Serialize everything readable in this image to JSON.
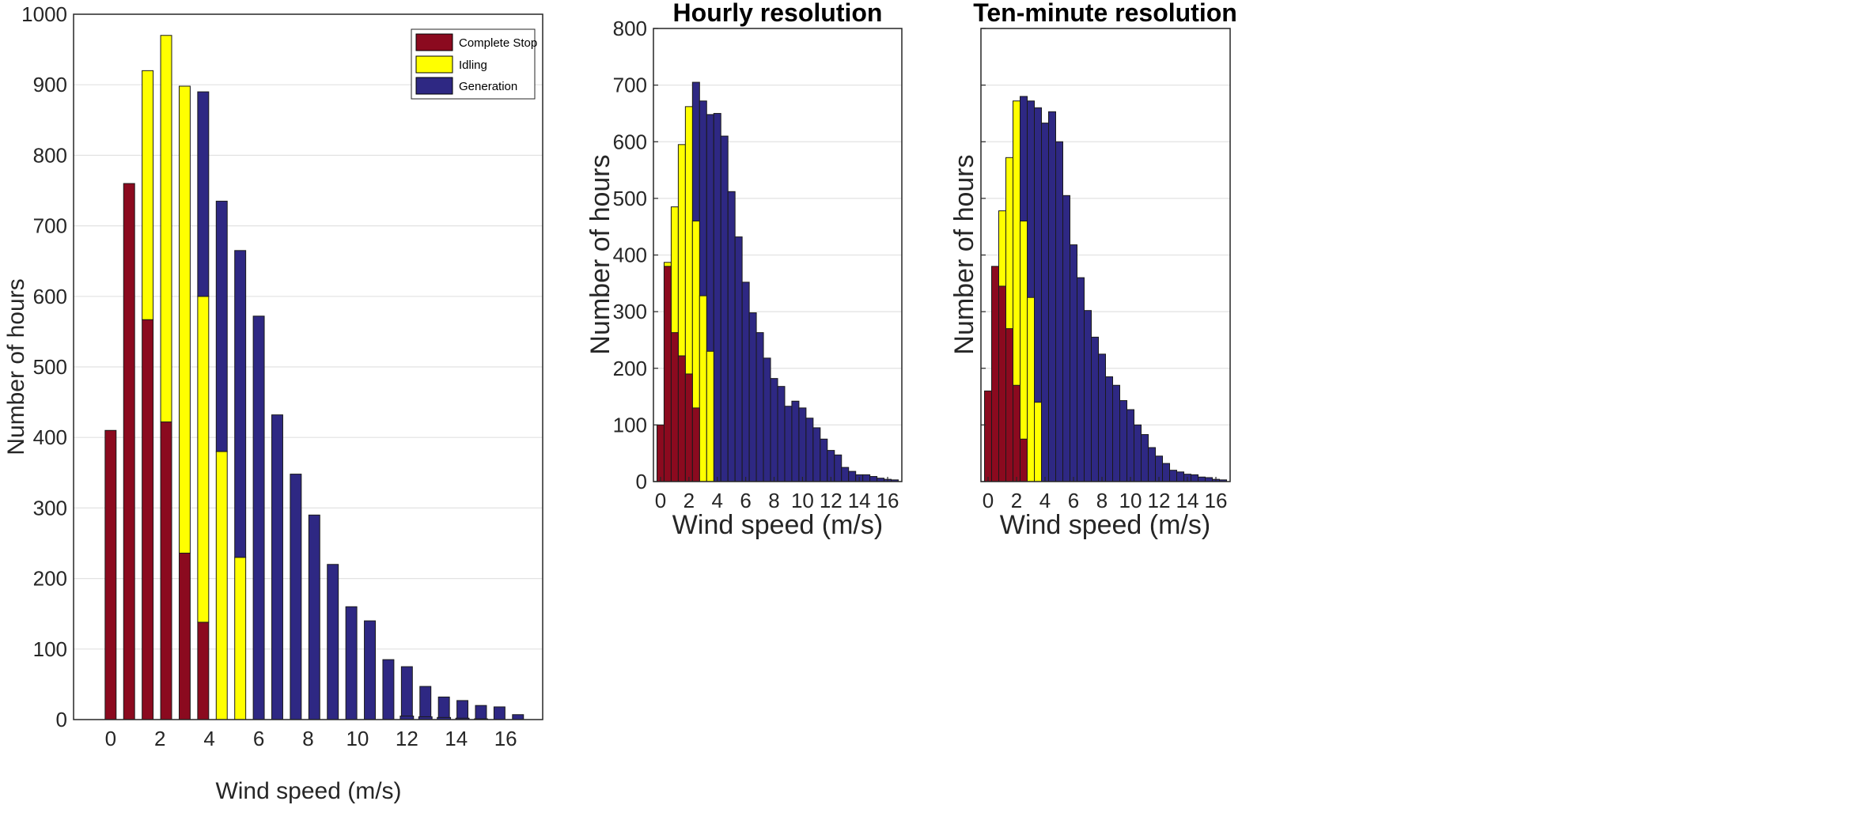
{
  "colors": {
    "complete_stop": "#8b0a1f",
    "idling": "#ffff00",
    "generation": "#2e2883",
    "grid": "#e2e2e2",
    "axis": "#262626"
  },
  "chart_data": [
    {
      "id": "stacked",
      "type": "bar",
      "stacked": true,
      "title": "",
      "xlabel": "Wind speed (m/s)",
      "ylabel": "Number of hours",
      "xlim": [
        -1.5,
        17.5
      ],
      "ylim": [
        0,
        1000
      ],
      "grid": true,
      "legend_position": "top-right",
      "xticks": [
        0,
        2,
        4,
        6,
        8,
        10,
        12,
        14,
        16
      ],
      "yticks": [
        0,
        100,
        200,
        300,
        400,
        500,
        600,
        700,
        800,
        900,
        1000
      ],
      "x": [
        0,
        0.75,
        1.5,
        2.25,
        3,
        3.75,
        4.5,
        5.25,
        6,
        6.75,
        7.5,
        8.25,
        9,
        9.75,
        10.5,
        11.25,
        12,
        12.75,
        13.5,
        14.25,
        15,
        15.75,
        16.5
      ],
      "series": [
        {
          "name": "Complete Stop",
          "color_key": "complete_stop",
          "values": [
            410,
            760,
            567,
            422,
            236,
            138,
            0,
            0,
            0,
            0,
            0,
            0,
            0,
            0,
            0,
            0,
            0,
            0,
            0,
            0,
            0,
            0,
            0
          ]
        },
        {
          "name": "Idling",
          "color_key": "idling",
          "values": [
            0,
            0,
            353,
            548,
            662,
            462,
            380,
            230,
            0,
            0,
            0,
            0,
            0,
            0,
            0,
            0,
            0,
            0,
            0,
            0,
            0,
            0,
            0
          ]
        },
        {
          "name": "Generation",
          "color_key": "generation",
          "values": [
            0,
            0,
            0,
            0,
            0,
            290,
            355,
            435,
            572,
            432,
            348,
            290,
            220,
            160,
            140,
            85,
            75,
            47,
            32,
            27,
            20,
            18,
            7
          ]
        }
      ],
      "tail": {
        "x": [
          12,
          12.75,
          13.5,
          14.25,
          15
        ],
        "values": [
          5,
          4,
          3,
          2,
          1
        ]
      }
    },
    {
      "id": "hourly",
      "type": "bar",
      "stacked": false,
      "title": "Hourly resolution",
      "xlabel": "Wind speed (m/s)",
      "ylabel": "Number of hours",
      "xlim": [
        -0.5,
        17
      ],
      "ylim": [
        0,
        800
      ],
      "grid": true,
      "xticks": [
        0,
        2,
        4,
        6,
        8,
        10,
        12,
        14,
        16
      ],
      "yticks": [
        0,
        100,
        200,
        300,
        400,
        500,
        600,
        700,
        800
      ],
      "series": [
        {
          "name": "Complete Stop",
          "color_key": "complete_stop",
          "x": [
            0,
            0.5,
            1,
            1.5,
            2,
            2.5
          ],
          "values": [
            100,
            380,
            263,
            222,
            190,
            130
          ]
        },
        {
          "name": "Idling",
          "color_key": "idling",
          "x": [
            0.5,
            1,
            1.5,
            2,
            2.5,
            3,
            3.5
          ],
          "values": [
            387,
            485,
            595,
            662,
            460,
            328,
            230
          ]
        },
        {
          "name": "Generation",
          "color_key": "generation",
          "x": [
            2.5,
            3,
            3.5,
            4,
            4.5,
            5,
            5.5,
            6,
            6.5,
            7,
            7.5,
            8,
            8.5,
            9,
            9.5,
            10,
            10.5,
            11,
            11.5,
            12,
            12.5,
            13,
            13.5,
            14,
            14.5,
            15,
            15.5,
            16,
            16.5
          ],
          "values": [
            705,
            672,
            648,
            650,
            610,
            512,
            432,
            352,
            298,
            263,
            218,
            182,
            168,
            133,
            142,
            130,
            112,
            95,
            75,
            55,
            47,
            25,
            18,
            12,
            12,
            9,
            6,
            4,
            3
          ]
        }
      ]
    },
    {
      "id": "ten_minute",
      "type": "bar",
      "stacked": false,
      "title": "Ten-minute resolution",
      "xlabel": "Wind speed (m/s)",
      "ylabel": "Number of hours",
      "xlim": [
        -0.5,
        17
      ],
      "ylim": [
        0,
        800
      ],
      "grid": true,
      "yticklabels_visible": false,
      "xticks": [
        0,
        2,
        4,
        6,
        8,
        10,
        12,
        14,
        16
      ],
      "yticks": [
        0,
        100,
        200,
        300,
        400,
        500,
        600,
        700,
        800
      ],
      "series": [
        {
          "name": "Complete Stop",
          "color_key": "complete_stop",
          "x": [
            0,
            0.5,
            1,
            1.5,
            2,
            2.5
          ],
          "values": [
            160,
            380,
            345,
            270,
            170,
            75
          ]
        },
        {
          "name": "Idling",
          "color_key": "idling",
          "x": [
            0.5,
            1,
            1.5,
            2,
            2.5,
            3,
            3.5
          ],
          "values": [
            300,
            478,
            572,
            672,
            460,
            325,
            140
          ]
        },
        {
          "name": "Generation",
          "color_key": "generation",
          "x": [
            2.5,
            3,
            3.5,
            4,
            4.5,
            5,
            5.5,
            6,
            6.5,
            7,
            7.5,
            8,
            8.5,
            9,
            9.5,
            10,
            10.5,
            11,
            11.5,
            12,
            12.5,
            13,
            13.5,
            14,
            14.5,
            15,
            15.5,
            16,
            16.5
          ],
          "values": [
            680,
            672,
            660,
            633,
            653,
            600,
            505,
            418,
            360,
            302,
            255,
            225,
            185,
            170,
            143,
            127,
            100,
            83,
            60,
            45,
            32,
            20,
            17,
            13,
            12,
            8,
            7,
            4,
            3
          ]
        }
      ]
    }
  ]
}
